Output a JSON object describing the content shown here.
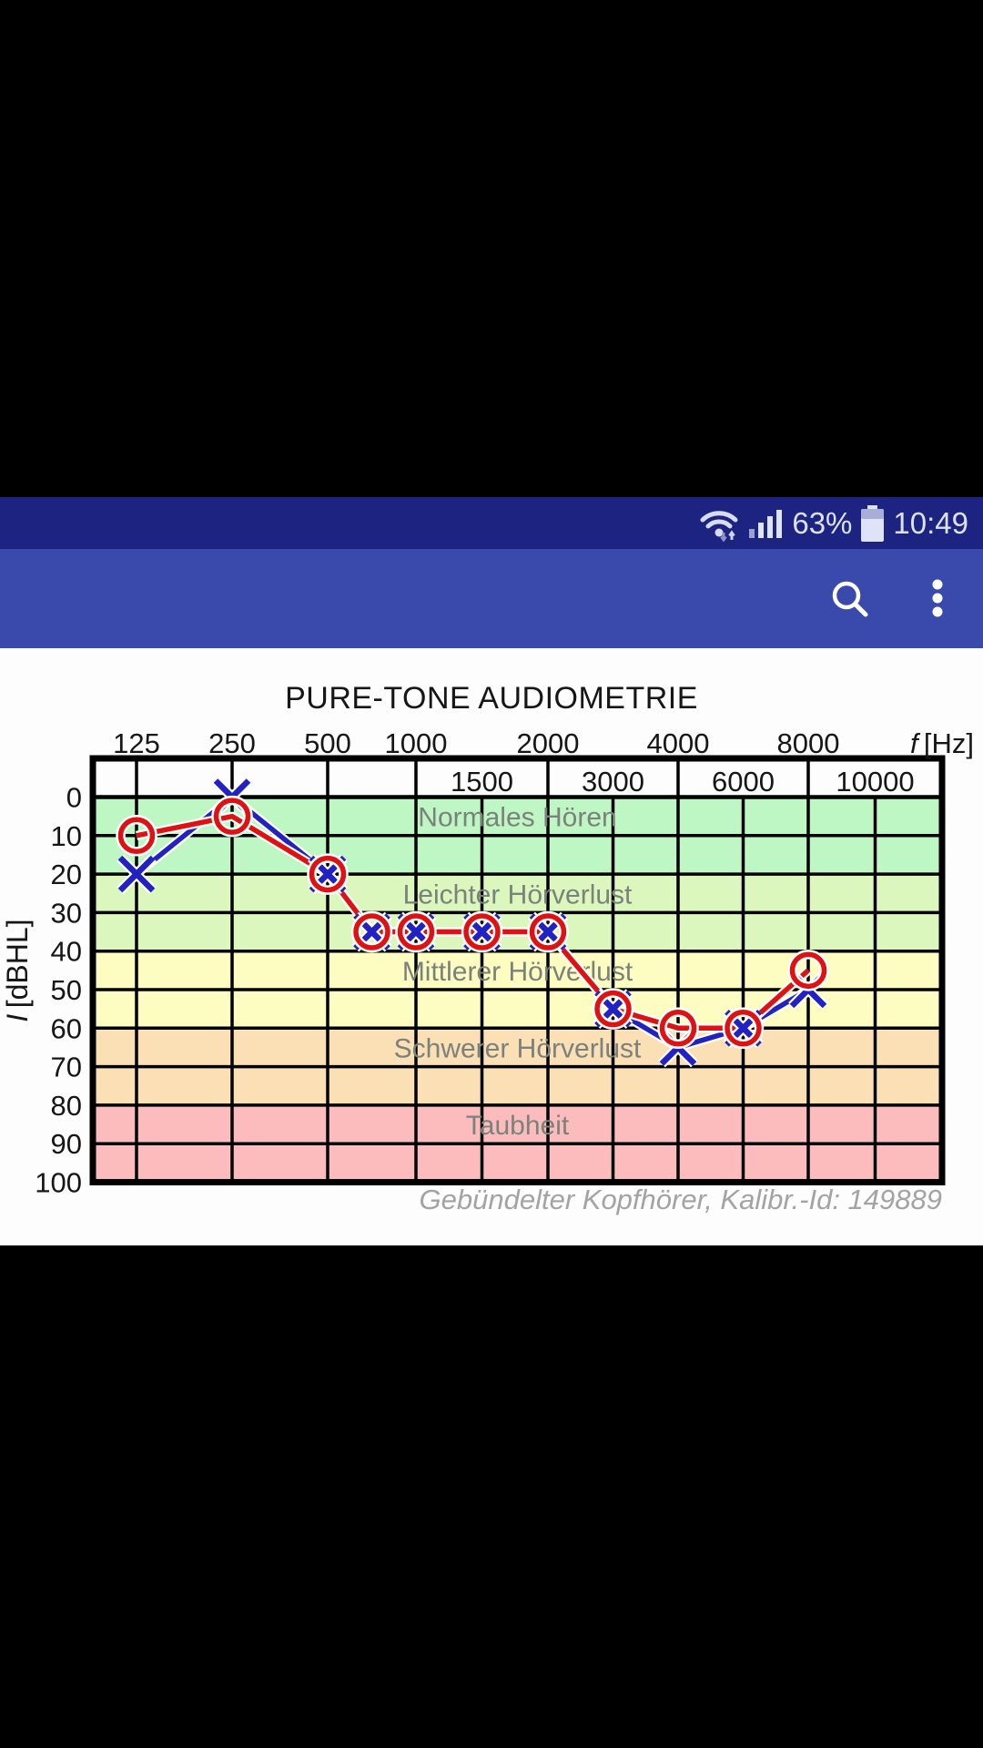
{
  "status_bar": {
    "battery_percent": "63%",
    "time": "10:49",
    "bg_color": "#1d2380"
  },
  "app_bar": {
    "bg_color": "#3a49ac",
    "actions": [
      "search",
      "more-options"
    ]
  },
  "chart_data": {
    "type": "line",
    "title": "PURE-TONE AUDIOMETRIE",
    "caption": "Gebündelter Kopfhörer, Kalibr.-Id: 149889",
    "x_axis": {
      "label_symbol": "f",
      "label_unit": "[Hz]",
      "scale": "octave",
      "octave_ticks": [
        125,
        250,
        500,
        1000,
        2000,
        4000,
        8000
      ],
      "inter_octave_ticks": [
        1500,
        3000,
        6000,
        10000
      ]
    },
    "y_axis": {
      "label_symbol": "I",
      "label_unit": "[dBHL]",
      "min": 0,
      "max": 100,
      "ticks": [
        0,
        10,
        20,
        30,
        40,
        50,
        60,
        70,
        80,
        90,
        100
      ]
    },
    "grid": true,
    "legend": "none",
    "zone_label_color": "#7b827b",
    "zones": [
      {
        "label": "Normales Hören",
        "from": 0,
        "to": 20,
        "color": "#bef7c4"
      },
      {
        "label": "Leichter Hörverlust",
        "from": 20,
        "to": 40,
        "color": "#dcf7bd"
      },
      {
        "label": "Mittlerer Hörverlust",
        "from": 40,
        "to": 60,
        "color": "#fdfcc1"
      },
      {
        "label": "Schwerer Hörverlust",
        "from": 60,
        "to": 80,
        "color": "#fbdfb5"
      },
      {
        "label": "Taubheit",
        "from": 80,
        "to": 100,
        "color": "#fcbcbd"
      }
    ],
    "series": [
      {
        "name": "left-ear-X",
        "marker": "X",
        "color": "#2222c2",
        "points": [
          {
            "f": 125,
            "db": 20
          },
          {
            "f": 250,
            "db": 0
          },
          {
            "f": 500,
            "db": 20
          },
          {
            "f": 750,
            "db": 35
          },
          {
            "f": 1000,
            "db": 35
          },
          {
            "f": 1500,
            "db": 35
          },
          {
            "f": 2000,
            "db": 35
          },
          {
            "f": 3000,
            "db": 55
          },
          {
            "f": 4000,
            "db": 65
          },
          {
            "f": 6000,
            "db": 60
          },
          {
            "f": 8000,
            "db": 50
          }
        ]
      },
      {
        "name": "right-ear-O",
        "marker": "O",
        "color": "#de1212",
        "points": [
          {
            "f": 125,
            "db": 10
          },
          {
            "f": 250,
            "db": 5
          },
          {
            "f": 500,
            "db": 20
          },
          {
            "f": 750,
            "db": 35
          },
          {
            "f": 1000,
            "db": 35
          },
          {
            "f": 1500,
            "db": 35
          },
          {
            "f": 2000,
            "db": 35
          },
          {
            "f": 3000,
            "db": 55
          },
          {
            "f": 4000,
            "db": 60
          },
          {
            "f": 6000,
            "db": 60
          },
          {
            "f": 8000,
            "db": 45
          }
        ]
      }
    ]
  }
}
